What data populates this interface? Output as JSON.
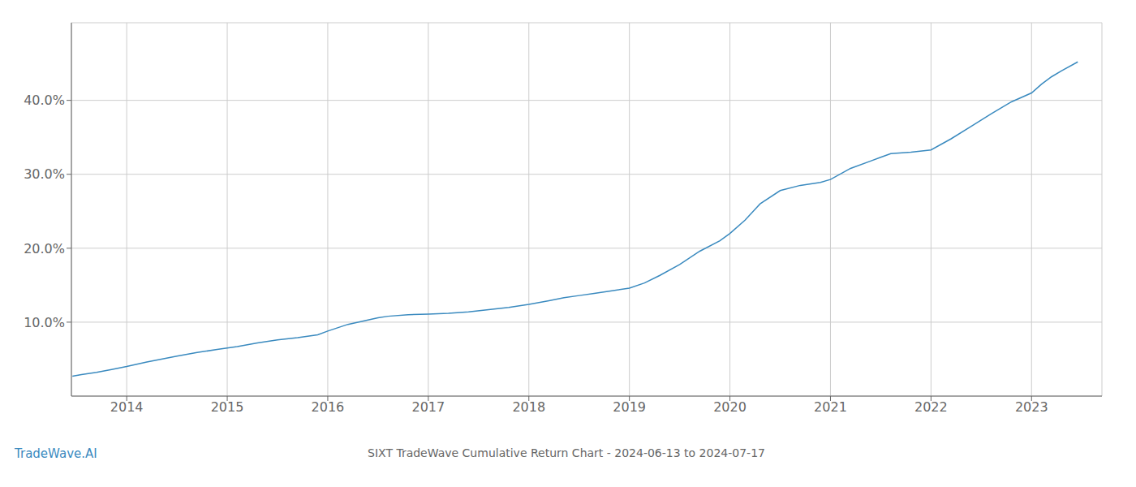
{
  "chart_data": {
    "type": "line",
    "title": "SIXT TradeWave Cumulative Return Chart - 2024-06-13 to 2024-07-17",
    "annotations": [
      "TradeWave.AI"
    ],
    "color": "#3a8abf",
    "grid": true,
    "xlim": [
      2013.45,
      2023.7
    ],
    "xticks": [
      2014,
      2015,
      2016,
      2017,
      2018,
      2019,
      2020,
      2021,
      2022,
      2023
    ],
    "ylim": [
      0.0,
      0.505
    ],
    "yticks": [
      {
        "value": 0.1,
        "label": "10.0%"
      },
      {
        "value": 0.2,
        "label": "20.0%"
      },
      {
        "value": 0.3,
        "label": "30.0%"
      },
      {
        "value": 0.4,
        "label": "40.0%"
      }
    ],
    "x": [
      2013.46,
      2013.55,
      2013.7,
      2013.85,
      2014.0,
      2014.2,
      2014.5,
      2014.7,
      2014.9,
      2015.1,
      2015.3,
      2015.5,
      2015.7,
      2015.9,
      2016.0,
      2016.2,
      2016.4,
      2016.5,
      2016.6,
      2016.8,
      2017.0,
      2017.2,
      2017.4,
      2017.6,
      2017.8,
      2018.0,
      2018.2,
      2018.35,
      2018.5,
      2018.65,
      2018.8,
      2019.0,
      2019.15,
      2019.3,
      2019.5,
      2019.7,
      2019.9,
      2020.0,
      2020.15,
      2020.3,
      2020.5,
      2020.7,
      2020.9,
      2021.0,
      2021.2,
      2021.4,
      2021.5,
      2021.6,
      2021.8,
      2022.0,
      2022.2,
      2022.4,
      2022.6,
      2022.8,
      2023.0,
      2023.1,
      2023.2,
      2023.3,
      2023.46
    ],
    "values": [
      0.027,
      0.029,
      0.032,
      0.036,
      0.04,
      0.046,
      0.054,
      0.059,
      0.063,
      0.067,
      0.072,
      0.076,
      0.079,
      0.083,
      0.088,
      0.097,
      0.103,
      0.106,
      0.108,
      0.11,
      0.111,
      0.112,
      0.114,
      0.117,
      0.12,
      0.124,
      0.129,
      0.133,
      0.136,
      0.139,
      0.142,
      0.146,
      0.153,
      0.163,
      0.178,
      0.196,
      0.21,
      0.22,
      0.238,
      0.26,
      0.278,
      0.285,
      0.289,
      0.293,
      0.308,
      0.318,
      0.323,
      0.328,
      0.33,
      0.333,
      0.348,
      0.365,
      0.382,
      0.398,
      0.41,
      0.422,
      0.432,
      0.44,
      0.452
    ]
  }
}
